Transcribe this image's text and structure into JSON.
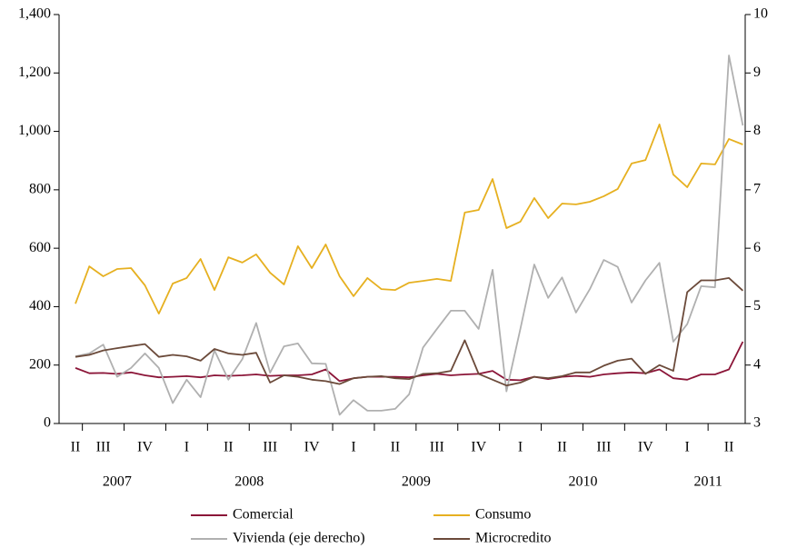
{
  "chart_data": {
    "type": "line",
    "categories": [
      "II",
      null,
      "III",
      null,
      null,
      "IV",
      null,
      null,
      "I",
      null,
      null,
      "II",
      null,
      null,
      "III",
      null,
      null,
      "IV",
      null,
      null,
      "I",
      null,
      null,
      "II",
      null,
      null,
      "III",
      null,
      null,
      "IV",
      null,
      null,
      "I",
      null,
      null,
      "II",
      null,
      null,
      "III",
      null,
      null,
      "IV",
      null,
      null,
      "I",
      null,
      null,
      "II",
      null
    ],
    "year_labels": [
      "2007",
      "2008",
      "2009",
      "2010",
      "2011"
    ],
    "series": [
      {
        "name": "Comercial",
        "color": "#8b1538",
        "axis": "y",
        "values": [
          190,
          172,
          173,
          170,
          175,
          165,
          158,
          160,
          162,
          158,
          165,
          163,
          165,
          168,
          163,
          165,
          165,
          168,
          185,
          145,
          155,
          160,
          160,
          160,
          158,
          165,
          170,
          165,
          168,
          170,
          180,
          150,
          148,
          160,
          152,
          160,
          163,
          160,
          168,
          172,
          175,
          172,
          185,
          155,
          150,
          168,
          168,
          185,
          280
        ]
      },
      {
        "name": "Consumo",
        "color": "#e6b020",
        "axis": "y",
        "values": [
          410,
          538,
          504,
          529,
          532,
          473,
          376,
          479,
          498,
          563,
          457,
          569,
          551,
          579,
          516,
          476,
          607,
          532,
          613,
          504,
          436,
          498,
          460,
          457,
          482,
          488,
          495,
          488,
          722,
          731,
          837,
          669,
          691,
          772,
          703,
          753,
          750,
          759,
          778,
          803,
          890,
          902,
          1024,
          852,
          809,
          890,
          887,
          974,
          955
        ]
      },
      {
        "name": "Vivienda (eje derecho)",
        "color": "#b0b0b0",
        "axis": "y2",
        "values": [
          4.15,
          4.2,
          4.35,
          3.8,
          3.95,
          4.2,
          3.95,
          3.35,
          3.75,
          3.45,
          4.25,
          3.75,
          4.1,
          4.72,
          3.87,
          4.32,
          4.37,
          4.03,
          4.02,
          3.15,
          3.4,
          3.22,
          3.22,
          3.25,
          3.5,
          4.3,
          4.62,
          4.93,
          4.93,
          4.62,
          5.63,
          3.55,
          4.62,
          5.72,
          5.15,
          5.5,
          4.9,
          5.3,
          5.8,
          5.68,
          5.07,
          5.45,
          5.75,
          4.4,
          4.7,
          5.35,
          5.33,
          9.3,
          8.1
        ]
      },
      {
        "name": "Microcredito",
        "color": "#6b4a3a",
        "axis": "y",
        "values": [
          228,
          235,
          250,
          258,
          265,
          272,
          228,
          235,
          230,
          215,
          255,
          240,
          235,
          242,
          140,
          165,
          160,
          150,
          145,
          135,
          155,
          160,
          162,
          155,
          152,
          170,
          172,
          180,
          285,
          170,
          150,
          130,
          140,
          160,
          155,
          162,
          175,
          175,
          198,
          215,
          222,
          170,
          200,
          180,
          450,
          490,
          490,
          498,
          455
        ]
      }
    ],
    "ylim": [
      0,
      1400
    ],
    "yticks": [
      0,
      200,
      400,
      600,
      800,
      {
        "value": 1000,
        "label": "1,000"
      },
      {
        "value": 1200,
        "label": "1,200"
      },
      {
        "value": 1400,
        "label": "1,400"
      }
    ],
    "y2lim": [
      3,
      10
    ],
    "y2ticks": [
      3,
      4,
      5,
      6,
      7,
      8,
      9,
      10
    ],
    "grid": false
  }
}
